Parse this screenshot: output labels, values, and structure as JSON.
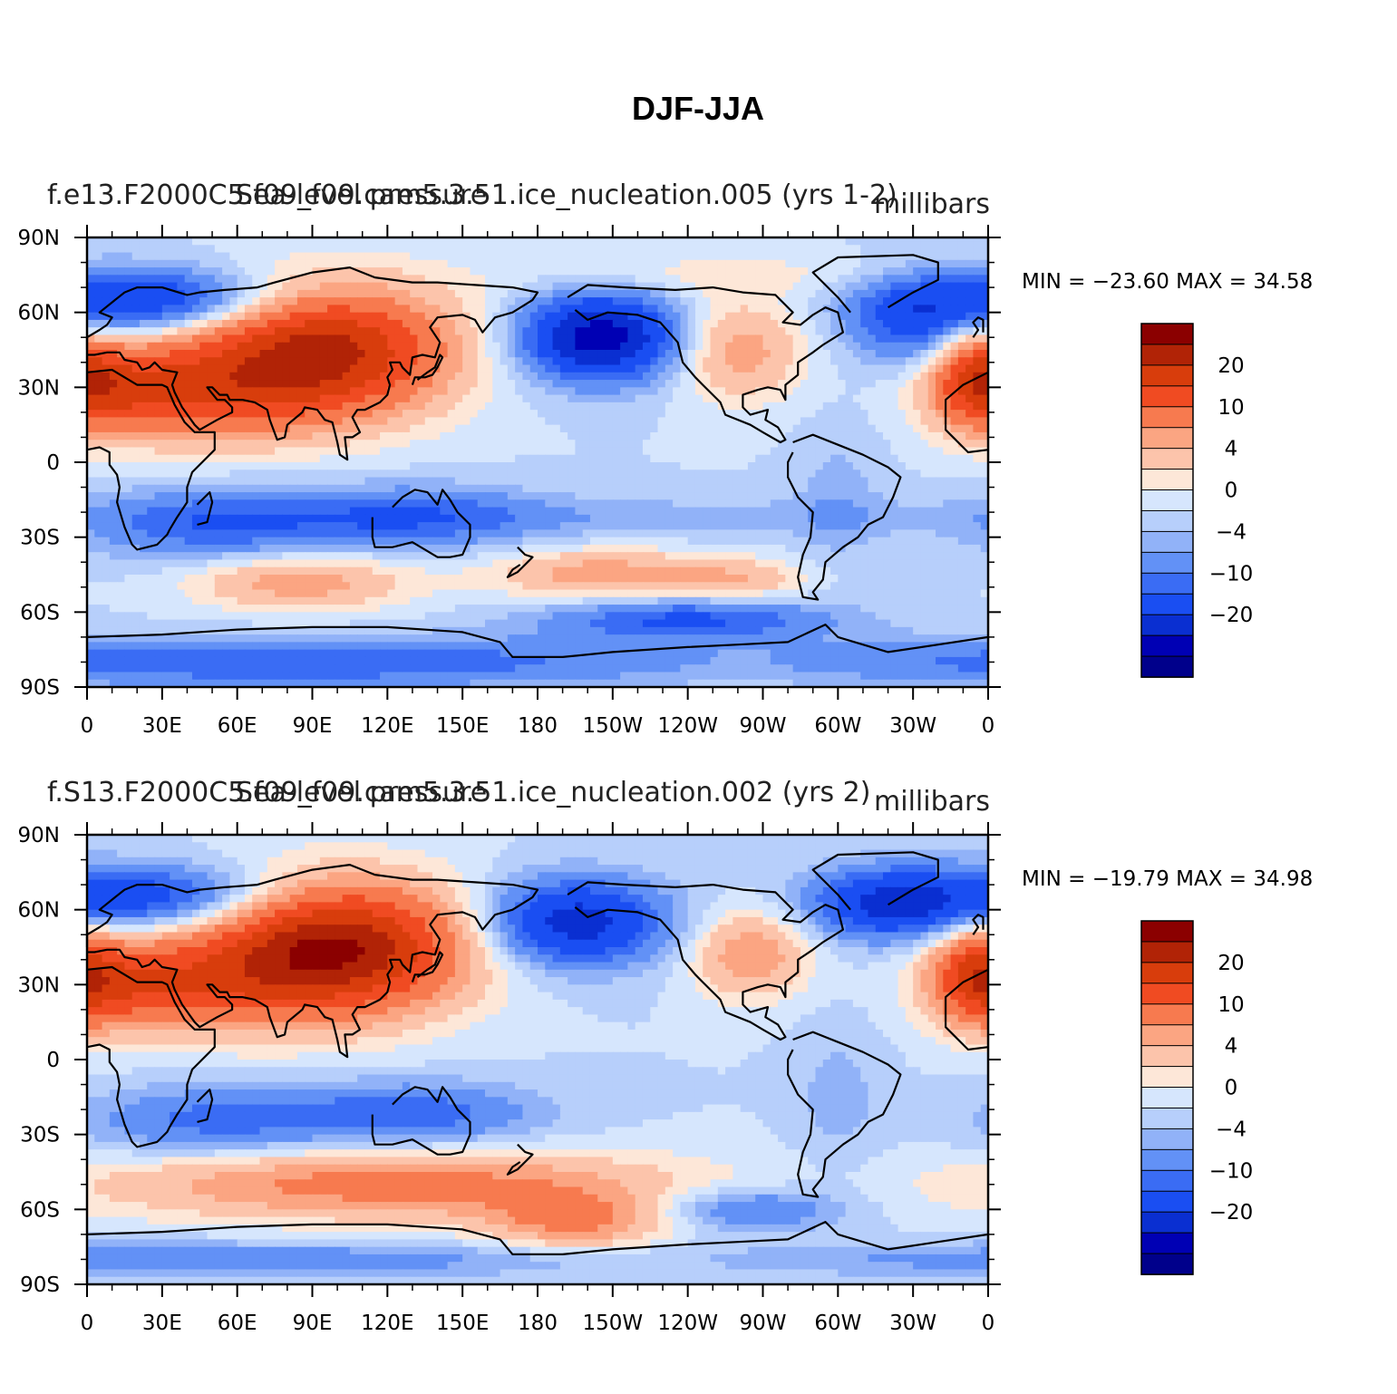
{
  "title": "DJF-JJA",
  "colors": [
    "#00008b",
    "#0000b4",
    "#0a2fd1",
    "#1a4ef2",
    "#3a6cf4",
    "#6291f6",
    "#91b2f8",
    "#b7cffb",
    "#d6e6fd",
    "#fde7d8",
    "#fcc4ab",
    "#fba582",
    "#f77a4f",
    "#f04b22",
    "#d83d0c",
    "#b12306",
    "#8b0000"
  ],
  "colorbar_labels": [
    "20",
    "10",
    "4",
    "0",
    "−4",
    "−10",
    "−20"
  ],
  "x_ticks": [
    "0",
    "30E",
    "60E",
    "90E",
    "120E",
    "150E",
    "180",
    "150W",
    "120W",
    "90W",
    "60W",
    "30W",
    "0"
  ],
  "y_ticks": [
    "90N",
    "60N",
    "30N",
    "0",
    "30S",
    "60S",
    "90S"
  ],
  "panels": [
    {
      "case_name": "f.e13.F2000C5.f09_f09.cam5.3.51.ice_nucleation.005 (yrs 1-2)",
      "variable_name": "Sea-level pressure",
      "units": "millibars",
      "stats_text": "MIN = −23.60  MAX =   34.58",
      "min": -23.6,
      "max": 34.58
    },
    {
      "case_name": "f.S13.F2000C5.f09_f09.cam5.3.51.ice_nucleation.002 (yrs 2)",
      "variable_name": "Sea-level pressure",
      "units": "millibars",
      "stats_text": "MIN = −19.79  MAX =   34.98",
      "min": -19.79,
      "max": 34.98
    }
  ]
}
